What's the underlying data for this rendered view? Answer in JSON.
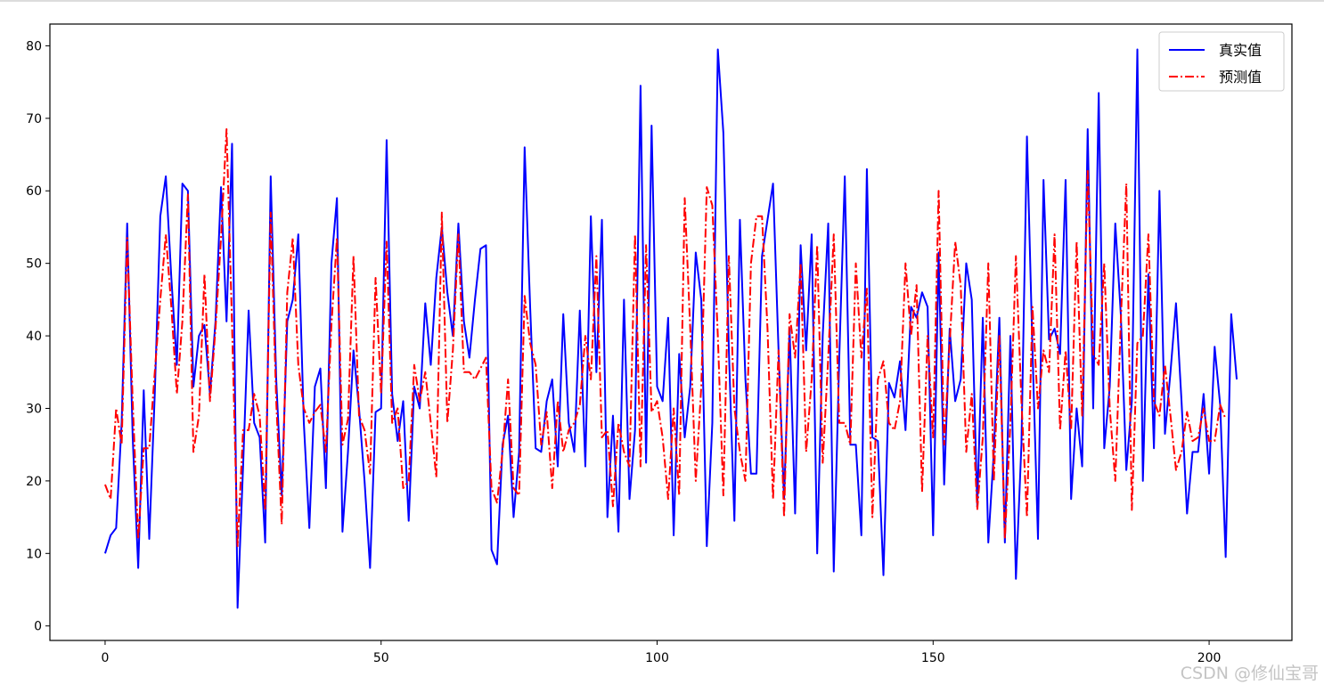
{
  "chart_data": {
    "type": "line",
    "title": "",
    "xlabel": "",
    "ylabel": "",
    "xlim": [
      -10,
      215
    ],
    "ylim": [
      -2,
      83
    ],
    "xticks": [
      0,
      50,
      100,
      150,
      200
    ],
    "yticks": [
      0,
      10,
      20,
      30,
      40,
      50,
      60,
      70,
      80
    ],
    "grid": false,
    "legend_position": "top-right",
    "series": [
      {
        "name": "真实值",
        "color": "#0000ff",
        "linestyle": "solid",
        "values": [
          10,
          12.5,
          13.5,
          28,
          55.5,
          26,
          8,
          32.5,
          12,
          32,
          56.5,
          62,
          48,
          36,
          61,
          60,
          33,
          40,
          41.5,
          32,
          42,
          60.5,
          42,
          66.5,
          2.5,
          22,
          43.5,
          28,
          26,
          11.5,
          62,
          34,
          18,
          42,
          45,
          54,
          28,
          13.5,
          33,
          35.5,
          19,
          50,
          59,
          13,
          24,
          38,
          30,
          20,
          8,
          29.5,
          30,
          67,
          32,
          25.5,
          31,
          14.5,
          33,
          30,
          44.5,
          36,
          48,
          55,
          46,
          40,
          55.5,
          42,
          37,
          45,
          52,
          52.5,
          10.5,
          8.5,
          25,
          29,
          15,
          24,
          66,
          44,
          24.5,
          24,
          31,
          34,
          22,
          43,
          28,
          24,
          43.5,
          22,
          56.5,
          35,
          56,
          15,
          29,
          13,
          45,
          17.5,
          27,
          74.5,
          22.5,
          69,
          33,
          31,
          42.5,
          12.5,
          37.5,
          26,
          33,
          51.5,
          45,
          11,
          28,
          79.5,
          68,
          38,
          14.5,
          56,
          34,
          21,
          21,
          51,
          56,
          61,
          38,
          17.5,
          41,
          15.5,
          52.5,
          38,
          54,
          10,
          40,
          55.5,
          7.5,
          37,
          62,
          25,
          25,
          12.5,
          63,
          26,
          25.5,
          7,
          33.5,
          31.5,
          36.5,
          27,
          44,
          42.5,
          46,
          44,
          12.5,
          51.5,
          19.5,
          41,
          31,
          34,
          50,
          45,
          16.5,
          42.5,
          11.5,
          24,
          42.5,
          11.5,
          40,
          6.5,
          25,
          67.5,
          38,
          12,
          61.5,
          39.5,
          41,
          37.5,
          61.5,
          17.5,
          30,
          22,
          68.5,
          30,
          73.5,
          24.5,
          33,
          55.5,
          43,
          21.5,
          31,
          79.5,
          20,
          48.5,
          24.5,
          60,
          26.5,
          35,
          44.5,
          31,
          15.5,
          24,
          24,
          32,
          21,
          38.5,
          30.5,
          9.5,
          43,
          34
        ]
      },
      {
        "name": "预测值",
        "color": "#ff0000",
        "linestyle": "dashdot",
        "values": [
          19.5,
          17.5,
          30,
          25,
          53.5,
          31,
          12,
          24.5,
          24.5,
          35,
          45,
          54,
          44,
          32,
          42,
          59.5,
          24,
          29,
          48.5,
          31,
          41,
          53.5,
          68.5,
          41.5,
          11,
          27,
          27,
          32,
          29,
          16,
          57,
          31,
          14,
          46,
          53.5,
          36,
          30,
          28,
          29.5,
          30.5,
          24,
          41.5,
          53.5,
          25,
          28.5,
          51,
          29,
          27,
          21,
          48,
          32,
          53,
          28,
          30,
          19,
          20,
          36,
          31,
          35,
          28,
          20.5,
          57,
          28,
          38,
          54,
          35,
          35,
          34,
          35.5,
          37,
          19,
          17,
          24,
          34,
          19,
          18,
          45.5,
          39,
          36,
          25,
          29.5,
          19,
          31,
          24,
          27,
          28,
          30.5,
          40,
          34,
          51,
          26,
          27,
          16.5,
          28,
          24,
          22,
          54,
          22,
          52.5,
          29.5,
          31,
          26,
          17.5,
          30,
          18,
          59,
          41,
          20,
          33,
          60.5,
          58,
          40,
          18,
          51,
          30,
          24,
          20,
          50,
          56.5,
          56.5,
          41,
          17.5,
          38,
          15,
          43,
          37,
          50,
          24,
          34,
          52.5,
          22.5,
          37,
          54,
          28,
          28,
          25,
          50,
          37,
          46.5,
          15,
          34,
          36.5,
          28,
          27,
          31,
          50,
          40,
          47,
          18.5,
          40,
          26,
          60,
          25,
          39,
          53,
          47,
          24,
          32,
          16,
          26,
          50,
          20,
          40,
          12,
          28,
          51,
          31,
          15,
          44,
          30,
          38,
          35,
          54,
          27,
          38,
          27,
          53,
          29,
          63,
          37.5,
          36,
          50,
          30,
          20,
          42,
          61,
          16,
          39,
          40,
          54,
          31,
          29,
          36,
          29,
          21.5,
          24,
          29.5,
          25.5,
          26,
          30,
          25.5,
          25.5,
          30.5,
          28.5
        ]
      }
    ]
  },
  "watermark": "CSDN @修仙宝哥"
}
